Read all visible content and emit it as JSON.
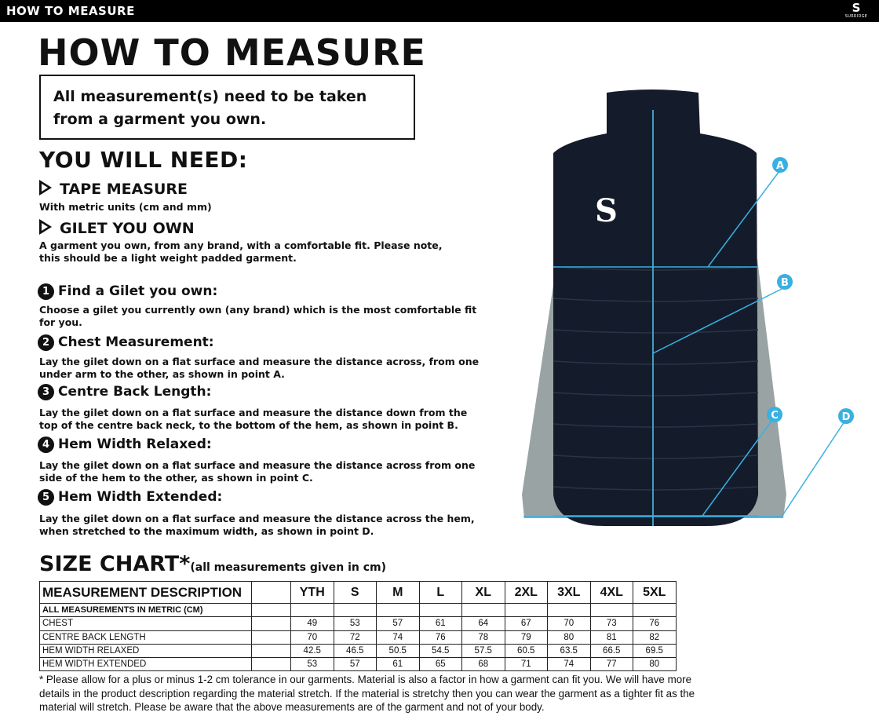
{
  "topbar": {
    "title": "HOW TO MEASURE",
    "logo_text": "SURRIDGE"
  },
  "title": "HOW TO MEASURE",
  "notice": "All measurement(s) need to be taken from a garment you own.",
  "you_will_need": {
    "heading": "YOU WILL NEED:",
    "items": [
      {
        "label": "TAPE MEASURE",
        "desc": "With metric units (cm and mm)"
      },
      {
        "label": "GILET YOU OWN",
        "desc": "A garment you own, from any brand, with a comfortable fit. Please note, this should be a light weight padded garment."
      }
    ]
  },
  "steps": [
    {
      "num": "1",
      "title": "Find a Gilet you own:",
      "desc": "Choose a gilet you currently own  (any brand) which is the most comfortable fit for you."
    },
    {
      "num": "2",
      "title": "Chest Measurement:",
      "desc": "Lay the gilet down on a flat surface and measure the distance across, from one under arm to the other, as shown in point A."
    },
    {
      "num": "3",
      "title": "Centre Back Length:",
      "desc": "Lay the gilet down on a flat surface and measure the distance down from the top of the centre back  neck, to the bottom of the hem, as shown in point B."
    },
    {
      "num": "4",
      "title": "Hem Width Relaxed:",
      "desc": "Lay the gilet down on a flat surface and measure the distance across from one side of the hem to the other, as shown in point C."
    },
    {
      "num": "5",
      "title": "Hem Width Extended:",
      "desc": "Lay the gilet down on a flat surface and measure the distance across the hem, when stretched to the maximum width, as shown in point D."
    }
  ],
  "diagram": {
    "points": [
      "A",
      "B",
      "C",
      "D"
    ],
    "accent": "#3ab0e0",
    "garment_color": "#141c2b",
    "panel_color": "#9aa3a3"
  },
  "size_chart": {
    "heading": "SIZE CHART*",
    "subheading": "(all measurements given in cm)",
    "header": "MEASUREMENT DESCRIPTION",
    "sizes": [
      "YTH",
      "S",
      "M",
      "L",
      "XL",
      "2XL",
      "3XL",
      "4XL",
      "5XL"
    ],
    "metric_note": "ALL MEASUREMENTS IN METRIC (CM)",
    "rows": [
      {
        "label": "CHEST",
        "values": [
          "49",
          "53",
          "57",
          "61",
          "64",
          "67",
          "70",
          "73",
          "76"
        ]
      },
      {
        "label": "CENTRE BACK LENGTH",
        "values": [
          "70",
          "72",
          "74",
          "76",
          "78",
          "79",
          "80",
          "81",
          "82"
        ]
      },
      {
        "label": "HEM WIDTH RELAXED",
        "values": [
          "42.5",
          "46.5",
          "50.5",
          "54.5",
          "57.5",
          "60.5",
          "63.5",
          "66.5",
          "69.5"
        ]
      },
      {
        "label": "HEM WIDTH EXTENDED",
        "values": [
          "53",
          "57",
          "61",
          "65",
          "68",
          "71",
          "74",
          "77",
          "80"
        ]
      }
    ]
  },
  "footnote": "* Please allow for a plus or minus 1-2 cm tolerance in our garments. Material is also a factor in how a garment can fit you. We will have more details in the product description regarding the material stretch.  If the material is stretchy then you can wear the garment as a tighter fit as the material will stretch.  Please be aware that the above measurements are of the garment and not of your body."
}
